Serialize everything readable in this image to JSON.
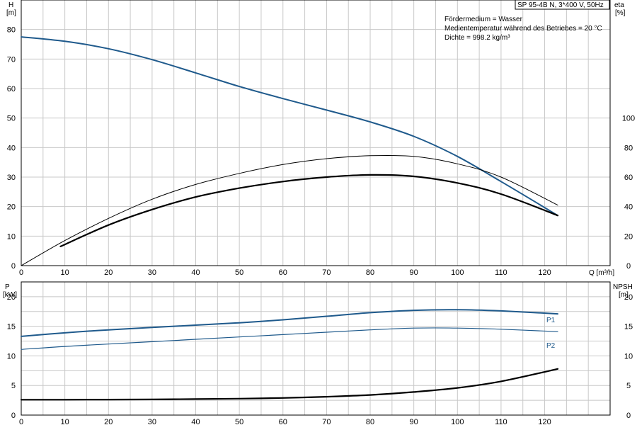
{
  "title_box": "SP 95-4B N, 3*400 V, 50Hz",
  "notes": [
    "Fördermedium = Wasser",
    "Medientemperatur während des Betriebes = 20 °C",
    "Dichte = 998.2 kg/m³"
  ],
  "top_axes": {
    "left_label": "H",
    "left_unit": "[m]",
    "right_label": "eta",
    "right_unit": "[%]",
    "x_label": "Q [m³/h]"
  },
  "bottom_axes": {
    "left_label": "P",
    "left_unit": "[kW]",
    "right_label": "NPSH",
    "right_unit": "[m]"
  },
  "colors": {
    "head": "#1f5a8c",
    "power": "#1f5a8c",
    "eff": "#000000",
    "npsh": "#000000"
  },
  "chart_data": [
    {
      "type": "line",
      "name": "head-efficiency",
      "xlim": [
        0,
        135
      ],
      "ylim_left": [
        0,
        90
      ],
      "ylim_right": [
        0,
        180
      ],
      "x_ticks": [
        0,
        10,
        20,
        30,
        40,
        50,
        60,
        70,
        80,
        90,
        100,
        110,
        120
      ],
      "y_ticks_left": [
        0,
        10,
        20,
        30,
        40,
        50,
        60,
        70,
        80
      ],
      "y_ticks_right": [
        0,
        20,
        40,
        60,
        80,
        100
      ],
      "grid": true,
      "series": [
        {
          "axis": "left",
          "color": "#1f5a8c",
          "width": 2,
          "x": [
            0,
            10,
            20,
            30,
            40,
            50,
            60,
            70,
            80,
            90,
            100,
            110,
            123
          ],
          "y": [
            77.5,
            76.0,
            73.5,
            69.8,
            65.3,
            60.7,
            56.6,
            52.7,
            48.7,
            43.8,
            37.0,
            28.5,
            17.0
          ]
        },
        {
          "axis": "right",
          "color": "#000000",
          "width": 1,
          "x": [
            0,
            10,
            20,
            30,
            40,
            50,
            60,
            70,
            80,
            90,
            100,
            110,
            123
          ],
          "y": [
            0,
            17.0,
            32.0,
            45.0,
            55.0,
            62.5,
            68.5,
            72.5,
            74.5,
            74.0,
            69.0,
            60.0,
            41.0
          ]
        },
        {
          "axis": "right",
          "color": "#000000",
          "width": 2.2,
          "x": [
            9,
            20,
            30,
            40,
            50,
            60,
            70,
            80,
            90,
            100,
            110,
            123
          ],
          "y": [
            13.0,
            27.5,
            38.0,
            46.5,
            52.5,
            57.0,
            60.0,
            61.5,
            60.5,
            56.0,
            48.5,
            34.0
          ]
        }
      ]
    },
    {
      "type": "line",
      "name": "power-npsh",
      "xlim": [
        0,
        135
      ],
      "ylim_left": [
        0,
        22.5
      ],
      "ylim_right": [
        0,
        22.5
      ],
      "x_ticks": [
        0,
        10,
        20,
        30,
        40,
        50,
        60,
        70,
        80,
        90,
        100,
        110,
        120
      ],
      "y_ticks_left": [
        0,
        5,
        10,
        15,
        20
      ],
      "y_ticks_right": [
        0,
        5,
        10,
        15,
        20
      ],
      "grid": true,
      "series": [
        {
          "name": "P1",
          "axis": "left",
          "color": "#1f5a8c",
          "width": 2,
          "x": [
            0,
            10,
            20,
            30,
            40,
            50,
            60,
            70,
            80,
            90,
            100,
            110,
            123
          ],
          "y": [
            13.3,
            13.9,
            14.4,
            14.8,
            15.2,
            15.6,
            16.1,
            16.7,
            17.3,
            17.7,
            17.8,
            17.6,
            17.1
          ]
        },
        {
          "name": "P2",
          "axis": "left",
          "color": "#1f5a8c",
          "width": 1.2,
          "x": [
            0,
            10,
            20,
            30,
            40,
            50,
            60,
            70,
            80,
            90,
            100,
            110,
            123
          ],
          "y": [
            11.1,
            11.6,
            12.0,
            12.4,
            12.8,
            13.2,
            13.6,
            14.0,
            14.4,
            14.7,
            14.7,
            14.5,
            14.1
          ]
        },
        {
          "axis": "right",
          "color": "#000000",
          "width": 2.2,
          "x": [
            0,
            10,
            20,
            30,
            40,
            50,
            60,
            70,
            80,
            90,
            100,
            110,
            123
          ],
          "y": [
            2.6,
            2.6,
            2.62,
            2.65,
            2.7,
            2.78,
            2.9,
            3.1,
            3.4,
            3.9,
            4.6,
            5.7,
            7.8
          ]
        }
      ]
    }
  ]
}
